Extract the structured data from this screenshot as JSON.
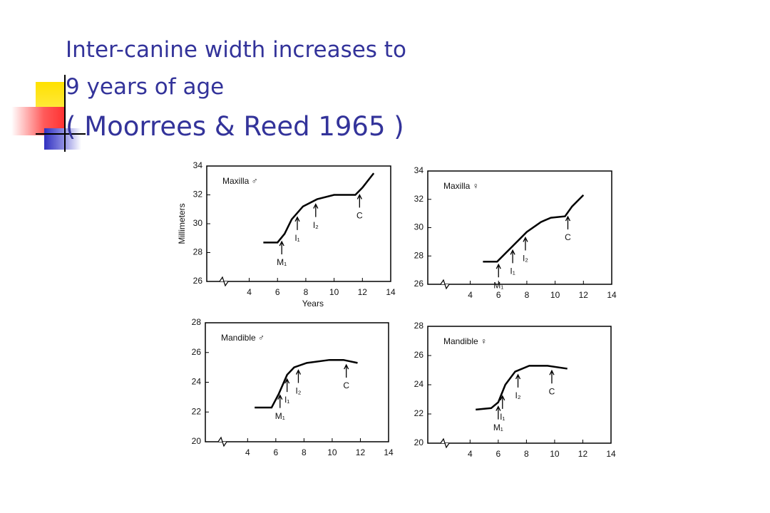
{
  "slide": {
    "title": [
      "Inter-canine width increases to",
      "9 years of age",
      "( Moorrees & Reed 1965 )"
    ]
  },
  "chart_data": [
    {
      "type": "line",
      "title": "Maxilla ♂",
      "xlabel": "Years",
      "ylabel": "Millimeters",
      "color": "#000000",
      "x": [
        5.0,
        6.0,
        6.5,
        7.0,
        7.8,
        8.8,
        10.0,
        11.5,
        12.0,
        12.8
      ],
      "values": [
        28.7,
        28.7,
        29.3,
        30.3,
        31.2,
        31.7,
        32.0,
        32.0,
        32.5,
        33.5
      ],
      "xlim": [
        1,
        14
      ],
      "xticks": [
        4,
        6,
        8,
        10,
        12,
        14
      ],
      "ylim": [
        26,
        34
      ],
      "yticks": [
        26,
        28,
        30,
        32,
        34
      ],
      "annotations": [
        {
          "x": 6.3,
          "label": "M₁"
        },
        {
          "x": 7.4,
          "label": "I₁"
        },
        {
          "x": 8.7,
          "label": "I₂"
        },
        {
          "x": 11.8,
          "label": "C"
        }
      ]
    },
    {
      "type": "line",
      "title": "Maxilla ♀",
      "color": "#000000",
      "x": [
        4.9,
        5.9,
        7.0,
        8.0,
        9.0,
        9.7,
        10.7,
        11.2,
        12.0
      ],
      "values": [
        27.6,
        27.6,
        28.7,
        29.7,
        30.4,
        30.7,
        30.8,
        31.5,
        32.3
      ],
      "xlim": [
        1,
        14
      ],
      "xticks": [
        4,
        6,
        8,
        10,
        12,
        14
      ],
      "ylim": [
        26,
        34
      ],
      "yticks": [
        26,
        28,
        30,
        32,
        34
      ],
      "annotations": [
        {
          "x": 6.0,
          "label": "M₁"
        },
        {
          "x": 7.0,
          "label": "I₁"
        },
        {
          "x": 7.9,
          "label": "I₂"
        },
        {
          "x": 10.9,
          "label": "C"
        }
      ]
    },
    {
      "type": "line",
      "title": "Mandible ♂",
      "color": "#000000",
      "x": [
        4.5,
        5.7,
        6.2,
        6.8,
        7.3,
        8.2,
        9.8,
        10.8,
        11.8
      ],
      "values": [
        22.3,
        22.3,
        23.2,
        24.5,
        25.0,
        25.3,
        25.5,
        25.5,
        25.3
      ],
      "xlim": [
        1,
        14
      ],
      "xticks": [
        4,
        6,
        8,
        10,
        12,
        14
      ],
      "ylim": [
        20,
        28
      ],
      "yticks": [
        20,
        22,
        24,
        26,
        28
      ],
      "annotations": [
        {
          "x": 6.3,
          "label": "M₁"
        },
        {
          "x": 6.8,
          "label": "I₁"
        },
        {
          "x": 7.6,
          "label": "I₂"
        },
        {
          "x": 11.0,
          "label": "C"
        }
      ]
    },
    {
      "type": "line",
      "title": "Mandible ♀",
      "color": "#000000",
      "x": [
        4.4,
        5.5,
        6.0,
        6.5,
        7.2,
        8.2,
        9.5,
        10.9
      ],
      "values": [
        22.3,
        22.4,
        22.8,
        24.0,
        24.9,
        25.3,
        25.3,
        25.1
      ],
      "xlim": [
        1,
        14
      ],
      "xticks": [
        4,
        6,
        8,
        10,
        12,
        14
      ],
      "ylim": [
        20,
        28
      ],
      "yticks": [
        20,
        22,
        24,
        26,
        28
      ],
      "annotations": [
        {
          "x": 6.0,
          "label": "M₁"
        },
        {
          "x": 6.3,
          "label": "I₁"
        },
        {
          "x": 7.4,
          "label": "I₂"
        },
        {
          "x": 9.8,
          "label": "C"
        }
      ]
    }
  ]
}
